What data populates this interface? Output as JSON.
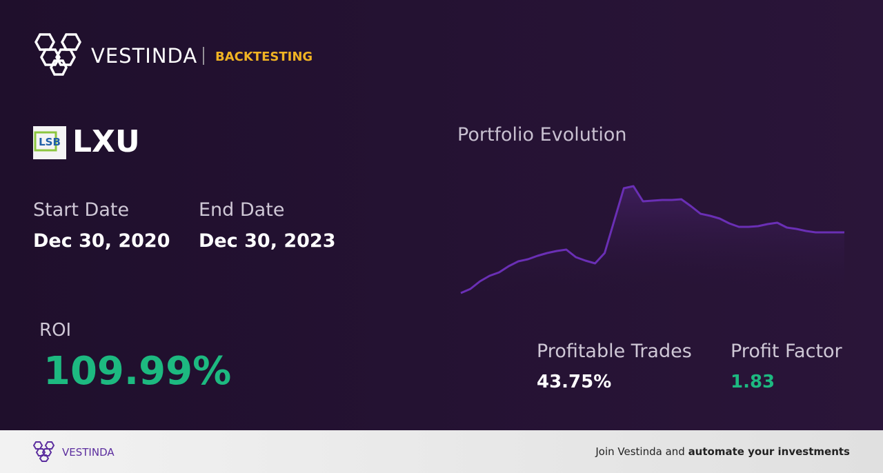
{
  "header": {
    "brand": "VESTINDA",
    "section": "BACKTESTING"
  },
  "stock": {
    "logo_text": "LSB",
    "ticker": "LXU"
  },
  "dates": {
    "start_label": "Start Date",
    "start_value": "Dec 30, 2020",
    "end_label": "End Date",
    "end_value": "Dec 30, 2023"
  },
  "roi": {
    "label": "ROI",
    "value": "109.99%"
  },
  "portfolio": {
    "title": "Portfolio Evolution",
    "chart": {
      "type": "line",
      "color": "#6a2fb5",
      "ylim": [
        0,
        160
      ],
      "values": [
        0,
        6,
        17,
        25,
        30,
        39,
        46,
        49,
        54,
        58,
        61,
        63,
        52,
        47,
        43,
        58,
        105,
        152,
        155,
        133,
        134,
        135,
        135,
        136,
        126,
        115,
        112,
        108,
        101,
        96,
        96,
        97,
        100,
        102,
        95,
        93,
        90,
        88,
        88,
        88,
        88
      ]
    }
  },
  "metrics": {
    "profitable_label": "Profitable Trades",
    "profitable_value": "43.75%",
    "factor_label": "Profit Factor",
    "factor_value": "1.83"
  },
  "footer": {
    "brand": "VESTINDA",
    "cta_plain": "Join Vestinda and ",
    "cta_bold": "automate your investments"
  }
}
